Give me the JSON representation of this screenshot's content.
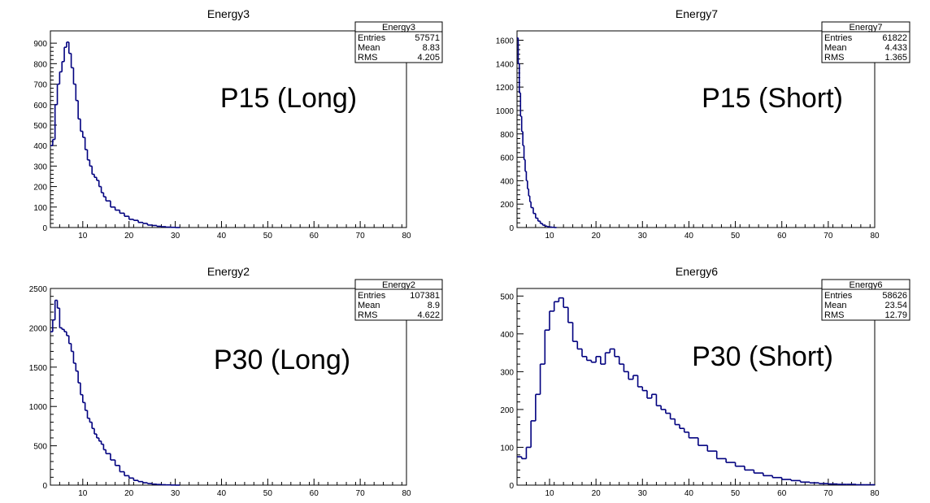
{
  "chart_data": [
    {
      "type": "bar",
      "title": "Energy3",
      "annotation": "P15 (Long)",
      "stats": {
        "name": "Energy3",
        "rows": [
          [
            "Entries",
            "57571"
          ],
          [
            "Mean",
            "8.83"
          ],
          [
            "RMS",
            "4.205"
          ]
        ]
      },
      "xlim": [
        3,
        80
      ],
      "ylim": [
        0,
        960
      ],
      "xticks": [
        10,
        20,
        30,
        40,
        50,
        60,
        70,
        80
      ],
      "yticks": [
        0,
        100,
        200,
        300,
        400,
        500,
        600,
        700,
        800,
        900
      ],
      "color": "#00007f",
      "x": [
        3,
        3.5,
        4,
        4.5,
        5,
        5.5,
        6,
        6.5,
        7,
        7.5,
        8,
        8.5,
        9,
        9.5,
        10,
        10.5,
        11,
        11.5,
        12,
        12.5,
        13,
        13.5,
        14,
        14.5,
        15,
        16,
        17,
        18,
        19,
        20,
        21,
        22,
        23,
        24,
        25,
        26,
        27,
        28,
        29,
        30
      ],
      "values": [
        400,
        430,
        600,
        700,
        760,
        810,
        880,
        905,
        850,
        780,
        700,
        620,
        530,
        470,
        440,
        380,
        330,
        300,
        260,
        245,
        230,
        200,
        170,
        150,
        130,
        100,
        85,
        70,
        55,
        40,
        35,
        25,
        20,
        12,
        10,
        6,
        4,
        2,
        1,
        0
      ]
    },
    {
      "type": "bar",
      "title": "Energy7",
      "annotation": "P15 (Short)",
      "stats": {
        "name": "Energy7",
        "rows": [
          [
            "Entries",
            "61822"
          ],
          [
            "Mean",
            "4.433"
          ],
          [
            "RMS",
            "1.365"
          ]
        ]
      },
      "xlim": [
        3,
        80
      ],
      "ylim": [
        0,
        1680
      ],
      "xticks": [
        10,
        20,
        30,
        40,
        50,
        60,
        70,
        80
      ],
      "yticks": [
        0,
        200,
        400,
        600,
        800,
        1000,
        1200,
        1400,
        1600
      ],
      "color": "#00007f",
      "x": [
        3,
        3.25,
        3.5,
        3.75,
        4,
        4.25,
        4.5,
        4.75,
        5,
        5.25,
        5.5,
        5.75,
        6,
        6.5,
        7,
        7.5,
        8,
        8.5,
        9,
        9.5,
        10,
        10.5,
        11
      ],
      "values": [
        1620,
        1400,
        1150,
        950,
        820,
        700,
        580,
        480,
        400,
        330,
        270,
        220,
        170,
        120,
        80,
        55,
        35,
        20,
        12,
        7,
        4,
        2,
        0
      ]
    },
    {
      "type": "bar",
      "title": "Energy2",
      "annotation": "P30 (Long)",
      "stats": {
        "name": "Energy2",
        "rows": [
          [
            "Entries",
            "107381"
          ],
          [
            "Mean",
            "8.9"
          ],
          [
            "RMS",
            "4.622"
          ]
        ]
      },
      "xlim": [
        3,
        80
      ],
      "ylim": [
        0,
        2500
      ],
      "xticks": [
        10,
        20,
        30,
        40,
        50,
        60,
        70,
        80
      ],
      "yticks": [
        0,
        500,
        1000,
        1500,
        2000,
        2500
      ],
      "color": "#00007f",
      "x": [
        3,
        3.5,
        4,
        4.5,
        5,
        5.5,
        6,
        6.5,
        7,
        7.5,
        8,
        8.5,
        9,
        9.5,
        10,
        10.5,
        11,
        11.5,
        12,
        12.5,
        13,
        13.5,
        14,
        14.5,
        15,
        16,
        17,
        18,
        19,
        20,
        21,
        22,
        23,
        24,
        25,
        26,
        27,
        28,
        29,
        30
      ],
      "values": [
        1950,
        2100,
        2350,
        2250,
        2000,
        1980,
        1950,
        1900,
        1800,
        1700,
        1550,
        1450,
        1300,
        1150,
        1050,
        950,
        850,
        800,
        720,
        650,
        600,
        560,
        520,
        450,
        400,
        320,
        250,
        170,
        120,
        90,
        60,
        45,
        30,
        20,
        12,
        8,
        5,
        3,
        1,
        0
      ]
    },
    {
      "type": "bar",
      "title": "Energy6",
      "annotation": "P30 (Short)",
      "stats": {
        "name": "Energy6",
        "rows": [
          [
            "Entries",
            "58626"
          ],
          [
            "Mean",
            "23.54"
          ],
          [
            "RMS",
            "12.79"
          ]
        ]
      },
      "xlim": [
        3,
        80
      ],
      "ylim": [
        0,
        520
      ],
      "xticks": [
        10,
        20,
        30,
        40,
        50,
        60,
        70,
        80
      ],
      "yticks": [
        0,
        100,
        200,
        300,
        400,
        500
      ],
      "color": "#00007f",
      "x": [
        3,
        4,
        5,
        6,
        7,
        8,
        9,
        10,
        11,
        12,
        13,
        14,
        15,
        16,
        17,
        18,
        19,
        20,
        21,
        22,
        23,
        24,
        25,
        26,
        27,
        28,
        29,
        30,
        31,
        32,
        33,
        34,
        35,
        36,
        37,
        38,
        39,
        40,
        42,
        44,
        46,
        48,
        50,
        52,
        54,
        56,
        58,
        60,
        62,
        64,
        66,
        68,
        70,
        72,
        74,
        76,
        78,
        80
      ],
      "values": [
        75,
        70,
        100,
        170,
        240,
        320,
        410,
        460,
        485,
        495,
        470,
        430,
        380,
        360,
        340,
        330,
        325,
        340,
        320,
        350,
        360,
        340,
        320,
        300,
        280,
        290,
        260,
        250,
        230,
        240,
        210,
        200,
        190,
        175,
        160,
        150,
        140,
        125,
        105,
        90,
        70,
        60,
        50,
        40,
        32,
        25,
        20,
        15,
        12,
        8,
        6,
        4,
        3,
        2,
        2,
        1,
        1,
        0
      ]
    }
  ]
}
